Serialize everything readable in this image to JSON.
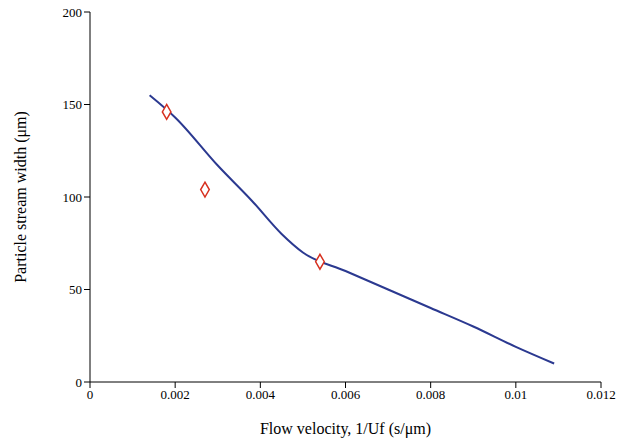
{
  "chart_data": {
    "type": "line",
    "x_label": "Flow velocity, 1/Uf (s/μm)",
    "y_label": "Particle stream width (μm)",
    "xlim": [
      0,
      0.012
    ],
    "xticks": [
      0,
      0.002,
      0.004,
      0.006,
      0.008,
      0.01,
      0.012
    ],
    "ylim": [
      0,
      200
    ],
    "yticks": [
      0,
      50,
      100,
      150,
      200
    ],
    "grid": false,
    "series": [
      {
        "type": "line",
        "color": "#2b3990",
        "line_style": "solid",
        "x": [
          0.0014,
          0.002,
          0.003,
          0.0038,
          0.0045,
          0.005,
          0.006,
          0.007,
          0.008,
          0.009,
          0.01,
          0.0109
        ],
        "values": [
          155,
          143,
          117,
          98,
          80,
          70,
          60,
          50,
          40,
          30,
          19,
          10
        ]
      },
      {
        "type": "scatter",
        "color": "#d7301f",
        "marker": "diamond",
        "x": [
          0.0018,
          0.0027,
          0.0054
        ],
        "values": [
          146,
          104,
          65
        ]
      }
    ]
  }
}
